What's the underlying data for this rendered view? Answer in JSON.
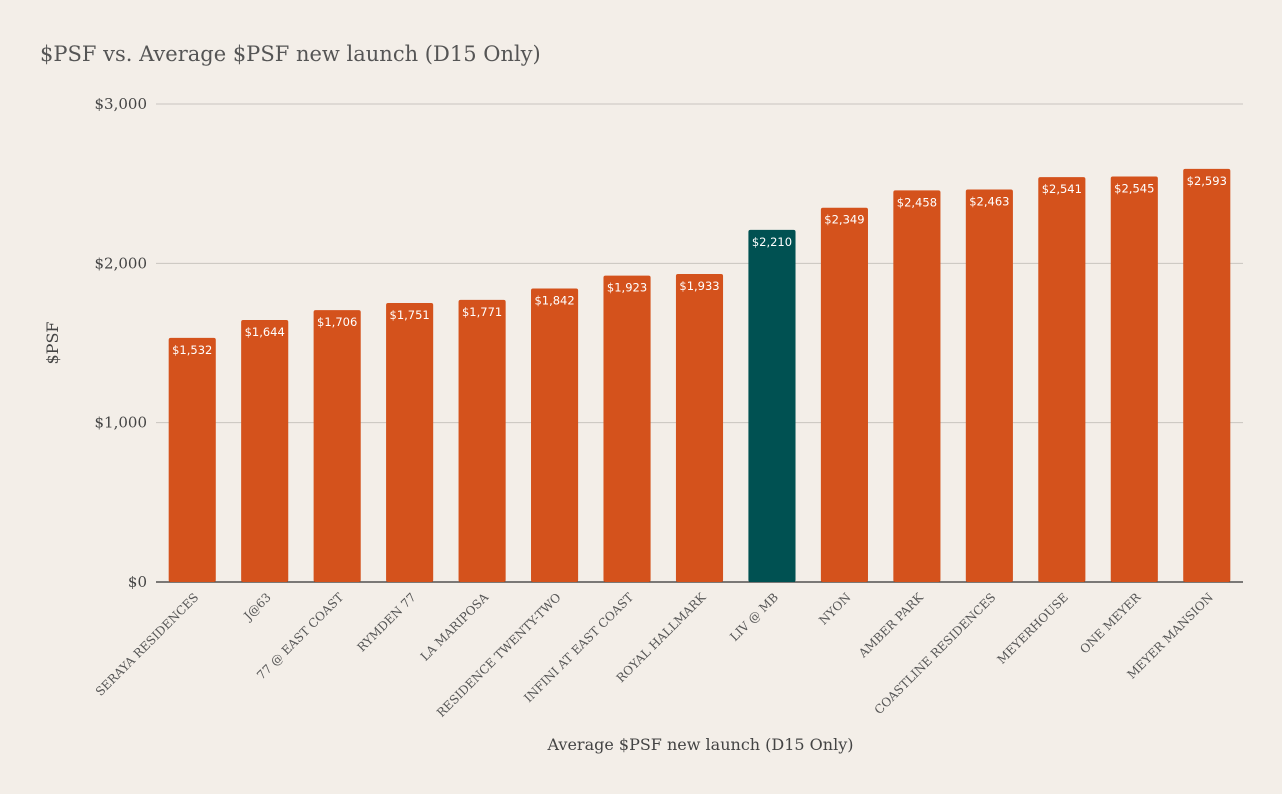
{
  "chart_data": {
    "type": "bar",
    "title": "$PSF vs. Average $PSF new launch (D15 Only)",
    "xlabel": "Average $PSF new launch (D15 Only)",
    "ylabel": "$PSF",
    "ylim": [
      0,
      3000
    ],
    "yticks": [
      0,
      1000,
      2000,
      3000
    ],
    "ytick_labels": [
      "$0",
      "$1,000",
      "$2,000",
      "$3,000"
    ],
    "grid": true,
    "legend": "none",
    "categories": [
      "SERAYA RESIDENCES",
      "J@63",
      "77 @ EAST COAST",
      "RYMDEN 77",
      "LA MARIPOSA",
      "RESIDENCE TWENTY-TWO",
      "INFINI AT EAST COAST",
      "ROYAL HALLMARK",
      "LIV @ MB",
      "NYON",
      "AMBER PARK",
      "COASTLINE RESIDENCES",
      "MEYERHOUSE",
      "ONE MEYER",
      "MEYER MANSION"
    ],
    "values": [
      1532,
      1644,
      1706,
      1751,
      1771,
      1842,
      1923,
      1933,
      2210,
      2349,
      2458,
      2463,
      2541,
      2545,
      2593
    ],
    "value_labels": [
      "$1,532",
      "$1,644",
      "$1,706",
      "$1,751",
      "$1,771",
      "$1,842",
      "$1,923",
      "$1,933",
      "$2,210",
      "$2,349",
      "$2,458",
      "$2,463",
      "$2,541",
      "$2,545",
      "$2,593"
    ],
    "highlight_category": "LIV @ MB",
    "colors": {
      "bar": "#d4521c",
      "highlight": "#005152",
      "gridline": "#c8c4bf",
      "baseline": "#333333",
      "background": "#f3eee8"
    }
  }
}
